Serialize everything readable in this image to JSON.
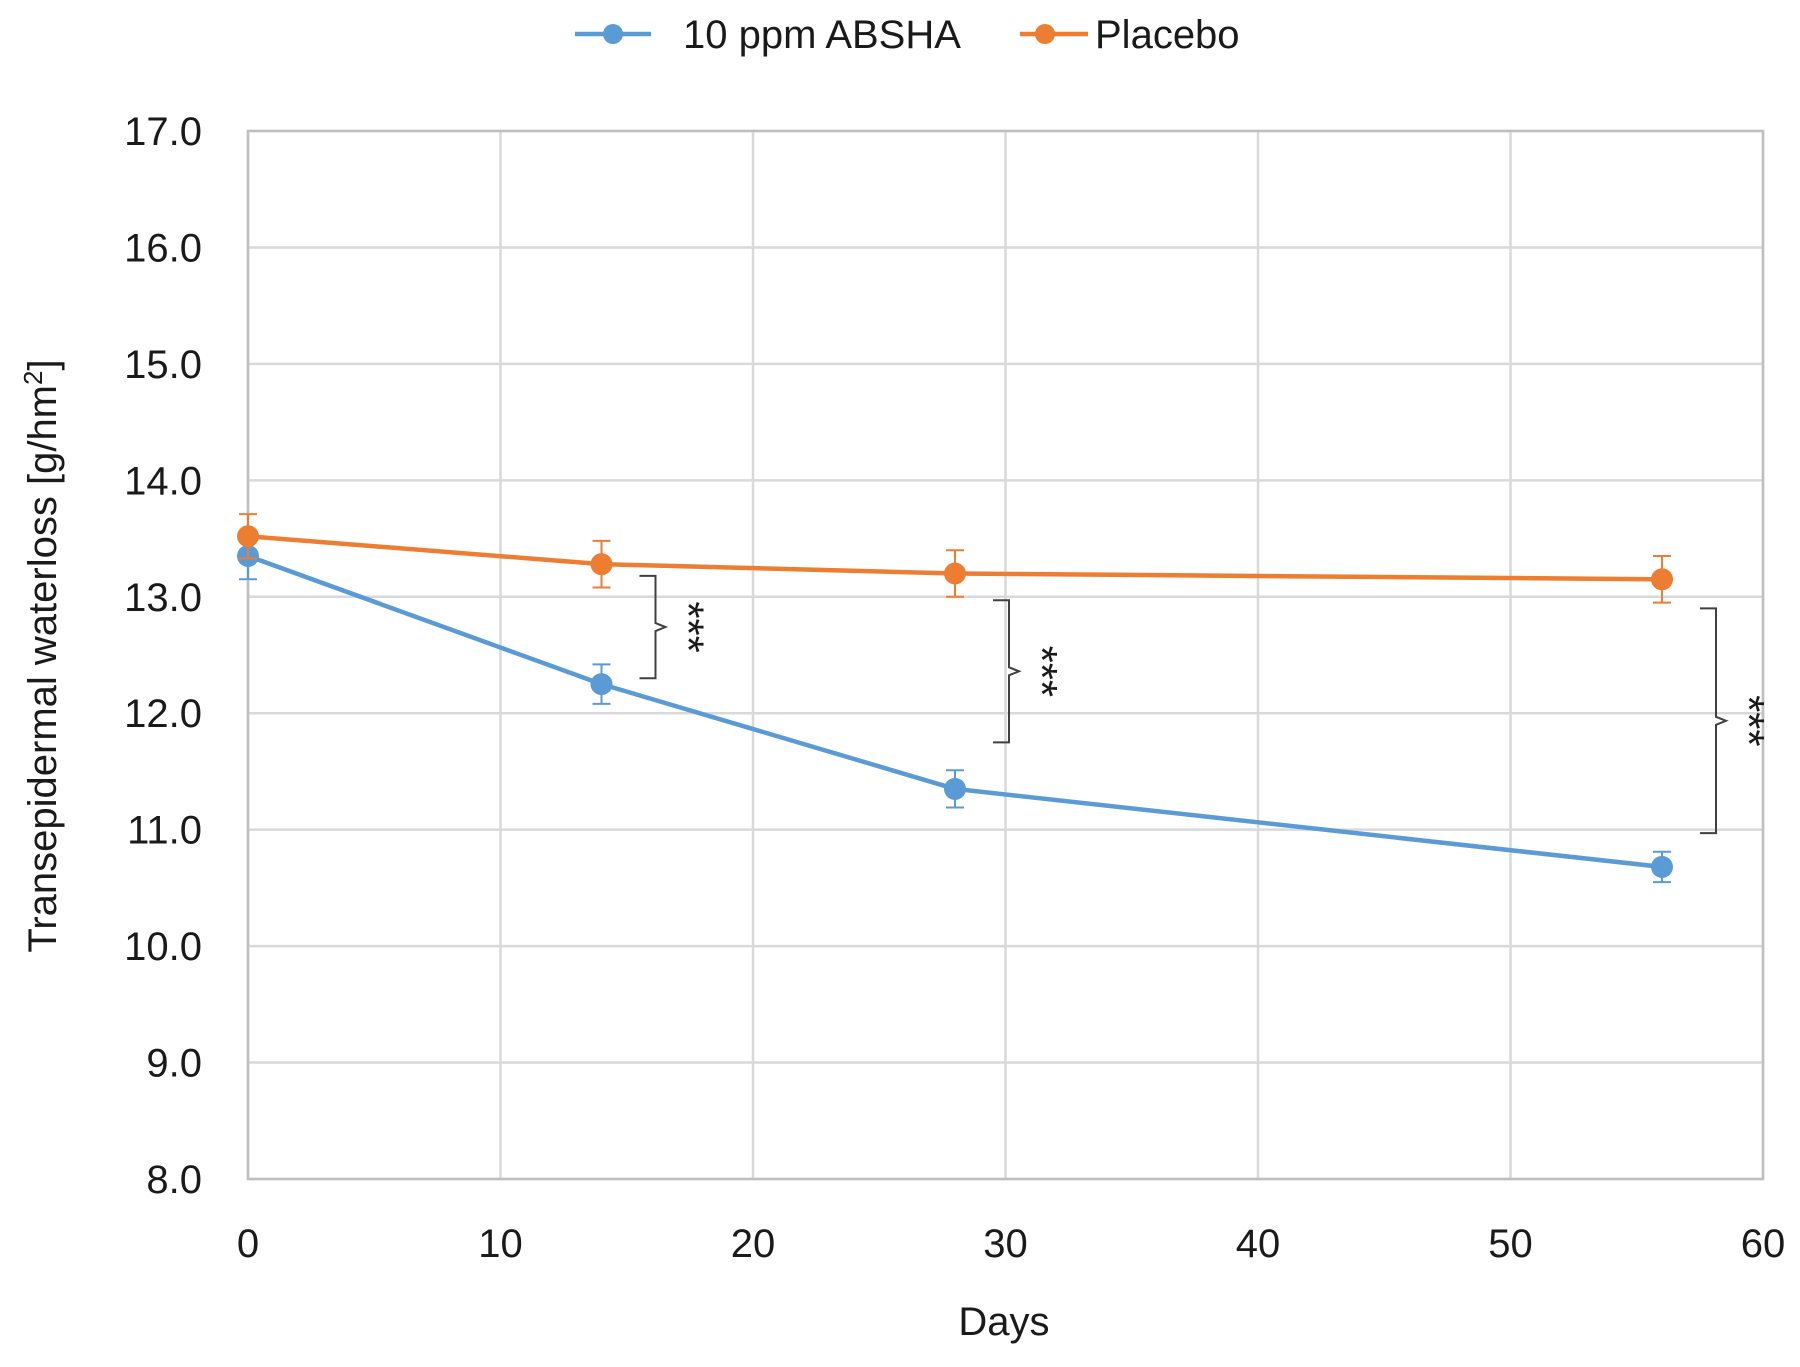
{
  "chart_data": {
    "type": "line",
    "title": "",
    "xlabel": "Days",
    "ylabel": "Transepidermal waterloss [g/hm",
    "ylabel_superscript": "2",
    "ylabel_suffix": "]",
    "xlim": [
      0,
      60
    ],
    "ylim": [
      8.0,
      17.0
    ],
    "x_ticks": [
      0,
      10,
      20,
      30,
      40,
      50,
      60
    ],
    "x_tick_labels": [
      "0",
      "10",
      "20",
      "30",
      "40",
      "50",
      "60"
    ],
    "y_ticks": [
      8.0,
      9.0,
      10.0,
      11.0,
      12.0,
      13.0,
      14.0,
      15.0,
      16.0,
      17.0
    ],
    "y_tick_labels": [
      "8.0",
      "9.0",
      "10.0",
      "11.0",
      "12.0",
      "13.0",
      "14.0",
      "15.0",
      "16.0",
      "17.0"
    ],
    "grid": true,
    "legend_position": "top-center",
    "series": [
      {
        "name": "10 ppm ABSHA",
        "color": "#5b9bd5",
        "x": [
          0,
          14,
          28,
          56
        ],
        "y": [
          13.35,
          12.25,
          11.35,
          10.68
        ],
        "error": [
          0.2,
          0.17,
          0.16,
          0.13
        ]
      },
      {
        "name": "Placebo",
        "color": "#ed7d31",
        "x": [
          0,
          14,
          28,
          56
        ],
        "y": [
          13.52,
          13.28,
          13.2,
          13.15
        ],
        "error": [
          0.19,
          0.2,
          0.2,
          0.2
        ]
      }
    ],
    "annotations": [
      {
        "x": 14,
        "y_low": 12.3,
        "y_high": 13.18,
        "label": "***"
      },
      {
        "x": 28,
        "y_low": 11.75,
        "y_high": 12.97,
        "label": "***"
      },
      {
        "x": 56,
        "y_low": 10.97,
        "y_high": 12.9,
        "label": "***"
      }
    ]
  }
}
